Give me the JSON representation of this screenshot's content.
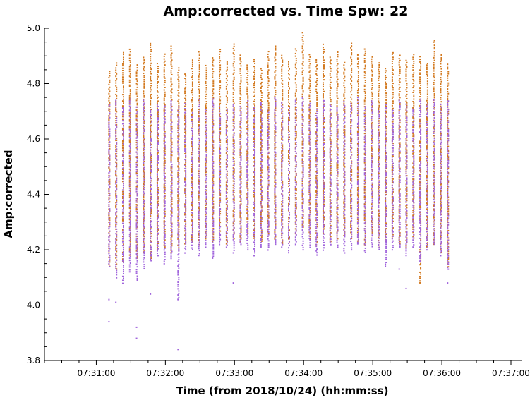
{
  "chart_data": {
    "type": "scatter",
    "title": "Amp:corrected vs. Time Spw: 22",
    "xlabel": "Time (from 2018/10/24) (hh:mm:ss)",
    "ylabel": "Amp:corrected",
    "x_tick_labels": [
      "07:31:00",
      "07:32:00",
      "07:33:00",
      "07:34:00",
      "07:35:00",
      "07:36:00",
      "07:37:00"
    ],
    "y_tick_labels": [
      "3.8",
      "4.0",
      "4.2",
      "4.4",
      "4.6",
      "4.8",
      "5.0"
    ],
    "xlim": [
      "07:30:15",
      "07:37:00"
    ],
    "ylim": [
      3.8,
      5.0
    ],
    "grid": false,
    "series_colors": [
      "#d2781e",
      "#a064dc"
    ],
    "series": [
      {
        "color": "#d2781e",
        "x": [
          "07:31:11",
          "07:31:17",
          "07:31:23",
          "07:31:29",
          "07:31:35",
          "07:31:41",
          "07:31:47",
          "07:31:53",
          "07:31:59",
          "07:32:05",
          "07:32:11",
          "07:32:17",
          "07:32:23",
          "07:32:29",
          "07:32:35",
          "07:32:41",
          "07:32:47",
          "07:32:53",
          "07:32:59",
          "07:33:05",
          "07:33:11",
          "07:33:17",
          "07:33:23",
          "07:33:29",
          "07:33:35",
          "07:33:41",
          "07:33:47",
          "07:33:53",
          "07:33:59",
          "07:34:05",
          "07:34:11",
          "07:34:17",
          "07:34:23",
          "07:34:29",
          "07:34:35",
          "07:34:41",
          "07:34:47",
          "07:34:53",
          "07:34:59",
          "07:35:05",
          "07:35:11",
          "07:35:17",
          "07:35:23",
          "07:35:29",
          "07:35:35",
          "07:35:41",
          "07:35:47",
          "07:35:53",
          "07:35:59",
          "07:36:05"
        ],
        "y_max": [
          4.85,
          4.88,
          4.92,
          4.93,
          4.87,
          4.9,
          4.95,
          4.88,
          4.91,
          4.94,
          4.86,
          4.84,
          4.89,
          4.92,
          4.87,
          4.9,
          4.93,
          4.88,
          4.95,
          4.91,
          4.87,
          4.89,
          4.86,
          4.92,
          4.94,
          4.9,
          4.88,
          4.93,
          4.99,
          4.91,
          4.89,
          4.94,
          4.9,
          4.92,
          4.88,
          4.95,
          4.91,
          4.93,
          4.9,
          4.88,
          4.86,
          4.92,
          4.9,
          4.89,
          4.91,
          4.9,
          4.88,
          4.96,
          4.91,
          4.87
        ],
        "y_min": [
          4.14,
          4.13,
          4.16,
          4.18,
          4.17,
          4.19,
          4.17,
          4.2,
          4.21,
          4.19,
          4.2,
          4.22,
          4.23,
          4.22,
          4.24,
          4.23,
          4.25,
          4.22,
          4.24,
          4.23,
          4.26,
          4.24,
          4.23,
          4.25,
          4.24,
          4.22,
          4.23,
          4.26,
          4.28,
          4.24,
          4.22,
          4.26,
          4.23,
          4.24,
          4.25,
          4.24,
          4.23,
          4.22,
          4.25,
          4.21,
          4.23,
          4.24,
          4.22,
          4.21,
          4.24,
          4.08,
          4.21,
          4.22,
          4.19,
          4.14
        ]
      },
      {
        "color": "#a064dc",
        "x": [
          "07:31:11",
          "07:31:17",
          "07:31:23",
          "07:31:29",
          "07:31:35",
          "07:31:41",
          "07:31:47",
          "07:31:53",
          "07:31:59",
          "07:32:05",
          "07:32:11",
          "07:32:17",
          "07:32:23",
          "07:32:29",
          "07:32:35",
          "07:32:41",
          "07:32:47",
          "07:32:53",
          "07:32:59",
          "07:33:05",
          "07:33:11",
          "07:33:17",
          "07:33:23",
          "07:33:29",
          "07:33:35",
          "07:33:41",
          "07:33:47",
          "07:33:53",
          "07:33:59",
          "07:34:05",
          "07:34:11",
          "07:34:17",
          "07:34:23",
          "07:34:29",
          "07:34:35",
          "07:34:41",
          "07:34:47",
          "07:34:53",
          "07:34:59",
          "07:35:05",
          "07:35:11",
          "07:35:17",
          "07:35:23",
          "07:35:29",
          "07:35:35",
          "07:35:41",
          "07:35:47",
          "07:35:53",
          "07:35:59",
          "07:36:05"
        ],
        "y_max": [
          4.73,
          4.74,
          4.72,
          4.75,
          4.72,
          4.74,
          4.71,
          4.73,
          4.72,
          4.74,
          4.72,
          4.73,
          4.71,
          4.74,
          4.72,
          4.75,
          4.72,
          4.71,
          4.73,
          4.72,
          4.74,
          4.72,
          4.73,
          4.71,
          4.75,
          4.73,
          4.72,
          4.74,
          4.76,
          4.73,
          4.71,
          4.74,
          4.73,
          4.72,
          4.74,
          4.73,
          4.75,
          4.72,
          4.74,
          4.72,
          4.73,
          4.71,
          4.74,
          4.73,
          4.72,
          4.75,
          4.73,
          4.74,
          4.73,
          4.74
        ],
        "y_min": [
          4.14,
          4.1,
          4.08,
          4.12,
          4.09,
          4.13,
          4.16,
          4.18,
          4.15,
          4.17,
          4.02,
          4.19,
          4.2,
          4.18,
          4.21,
          4.17,
          4.22,
          4.21,
          4.19,
          4.22,
          4.2,
          4.18,
          4.21,
          4.2,
          4.22,
          4.21,
          4.19,
          4.22,
          4.2,
          4.21,
          4.18,
          4.2,
          4.22,
          4.21,
          4.19,
          4.2,
          4.22,
          4.19,
          4.21,
          4.2,
          4.14,
          4.2,
          4.21,
          4.18,
          4.21,
          4.16,
          4.2,
          4.22,
          4.18,
          4.13
        ]
      }
    ],
    "outliers": [
      {
        "x": "07:31:11",
        "y": 3.94
      },
      {
        "x": "07:31:11",
        "y": 4.02
      },
      {
        "x": "07:31:17",
        "y": 4.01
      },
      {
        "x": "07:31:35",
        "y": 3.92
      },
      {
        "x": "07:31:35",
        "y": 3.88
      },
      {
        "x": "07:31:47",
        "y": 4.04
      },
      {
        "x": "07:32:11",
        "y": 3.84
      },
      {
        "x": "07:32:11",
        "y": 4.02
      },
      {
        "x": "07:32:59",
        "y": 4.08
      },
      {
        "x": "07:35:29",
        "y": 4.06
      },
      {
        "x": "07:35:23",
        "y": 4.13
      },
      {
        "x": "07:36:05",
        "y": 4.08
      }
    ]
  }
}
